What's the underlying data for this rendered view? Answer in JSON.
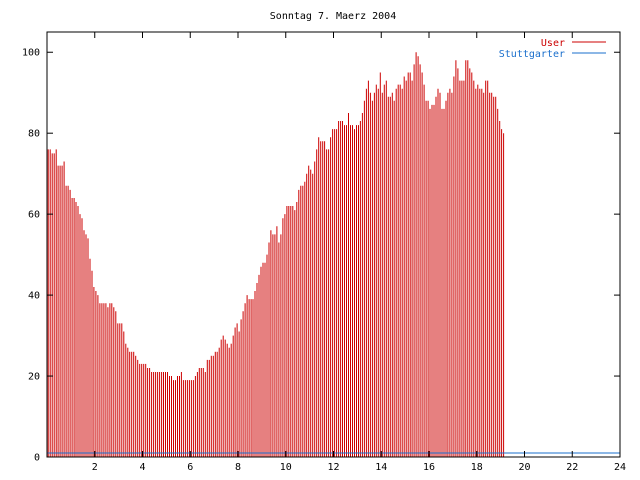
{
  "chart_data": {
    "type": "bar",
    "title": "Sonntag 7. Maerz 2004",
    "xlabel": "",
    "ylabel": "",
    "xlim": [
      0,
      24
    ],
    "ylim": [
      0,
      105
    ],
    "xticks": [
      2,
      4,
      6,
      8,
      10,
      12,
      14,
      16,
      18,
      20,
      22,
      24
    ],
    "yticks": [
      0,
      20,
      40,
      60,
      80,
      100
    ],
    "legend_position": "top-right",
    "series": [
      {
        "name": "User",
        "color": "#cc0000",
        "x_start": 0,
        "x_step": 0.0833,
        "values": [
          76,
          76,
          75,
          75,
          76,
          72,
          72,
          72,
          73,
          67,
          67,
          66,
          64,
          64,
          63,
          62,
          60,
          59,
          56,
          55,
          54,
          49,
          46,
          42,
          41,
          40,
          38,
          38,
          38,
          38,
          37,
          38,
          38,
          37,
          36,
          33,
          33,
          33,
          31,
          28,
          27,
          26,
          26,
          26,
          25,
          24,
          23,
          23,
          23,
          23,
          22,
          22,
          21,
          21,
          21,
          21,
          21,
          21,
          21,
          21,
          21,
          20,
          20,
          19,
          19,
          20,
          20,
          21,
          19,
          19,
          19,
          19,
          19,
          19,
          20,
          21,
          22,
          22,
          22,
          21,
          24,
          24,
          25,
          25,
          26,
          26,
          27,
          29,
          30,
          29,
          28,
          27,
          28,
          30,
          32,
          33,
          31,
          34,
          36,
          38,
          40,
          39,
          39,
          39,
          41,
          43,
          45,
          47,
          48,
          48,
          50,
          53,
          56,
          55,
          55,
          57,
          53,
          55,
          59,
          60,
          62,
          62,
          62,
          62,
          61,
          63,
          66,
          67,
          67,
          68,
          70,
          72,
          71,
          70,
          73,
          76,
          79,
          78,
          78,
          78,
          76,
          76,
          79,
          81,
          81,
          81,
          83,
          83,
          83,
          82,
          82,
          85,
          82,
          82,
          81,
          82,
          82,
          83,
          85,
          88,
          91,
          93,
          90,
          88,
          90,
          92,
          91,
          95,
          90,
          92,
          93,
          89,
          89,
          90,
          88,
          91,
          92,
          92,
          91,
          94,
          93,
          95,
          95,
          93,
          97,
          100,
          99,
          97,
          95,
          92,
          88,
          88,
          86,
          87,
          87,
          89,
          91,
          90,
          86,
          86,
          88,
          90,
          91,
          90,
          94,
          98,
          96,
          93,
          93,
          93,
          98,
          98,
          96,
          95,
          93,
          91,
          92,
          91,
          91,
          90,
          93,
          93,
          90,
          90,
          89,
          89,
          86,
          83,
          81,
          80
        ]
      },
      {
        "name": "Stuttgarter",
        "color": "#1a6fcc",
        "x": [
          0,
          24
        ],
        "values": [
          1,
          1
        ]
      }
    ]
  }
}
